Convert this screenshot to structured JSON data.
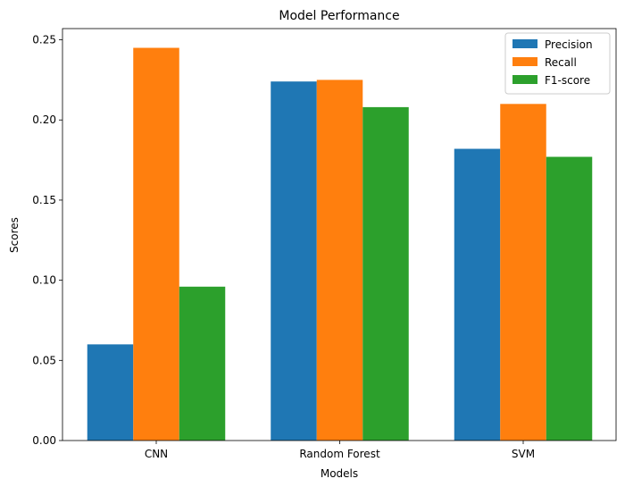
{
  "chart_data": {
    "type": "bar",
    "title": "Model Performance",
    "xlabel": "Models",
    "ylabel": "Scores",
    "categories": [
      "CNN",
      "Random Forest",
      "SVM"
    ],
    "series": [
      {
        "name": "Precision",
        "color": "#1f77b4",
        "values": [
          0.06,
          0.224,
          0.182
        ]
      },
      {
        "name": "Recall",
        "color": "#ff7f0e",
        "values": [
          0.245,
          0.225,
          0.21
        ]
      },
      {
        "name": "F1-score",
        "color": "#2ca02c",
        "values": [
          0.096,
          0.208,
          0.177
        ]
      }
    ],
    "ylim": [
      0,
      0.257
    ],
    "yticks": [
      0.0,
      0.05,
      0.1,
      0.15,
      0.2,
      0.25
    ],
    "ytick_labels": [
      "0.00",
      "0.05",
      "0.10",
      "0.15",
      "0.20",
      "0.25"
    ],
    "grid": false,
    "legend_position": "top-right"
  }
}
